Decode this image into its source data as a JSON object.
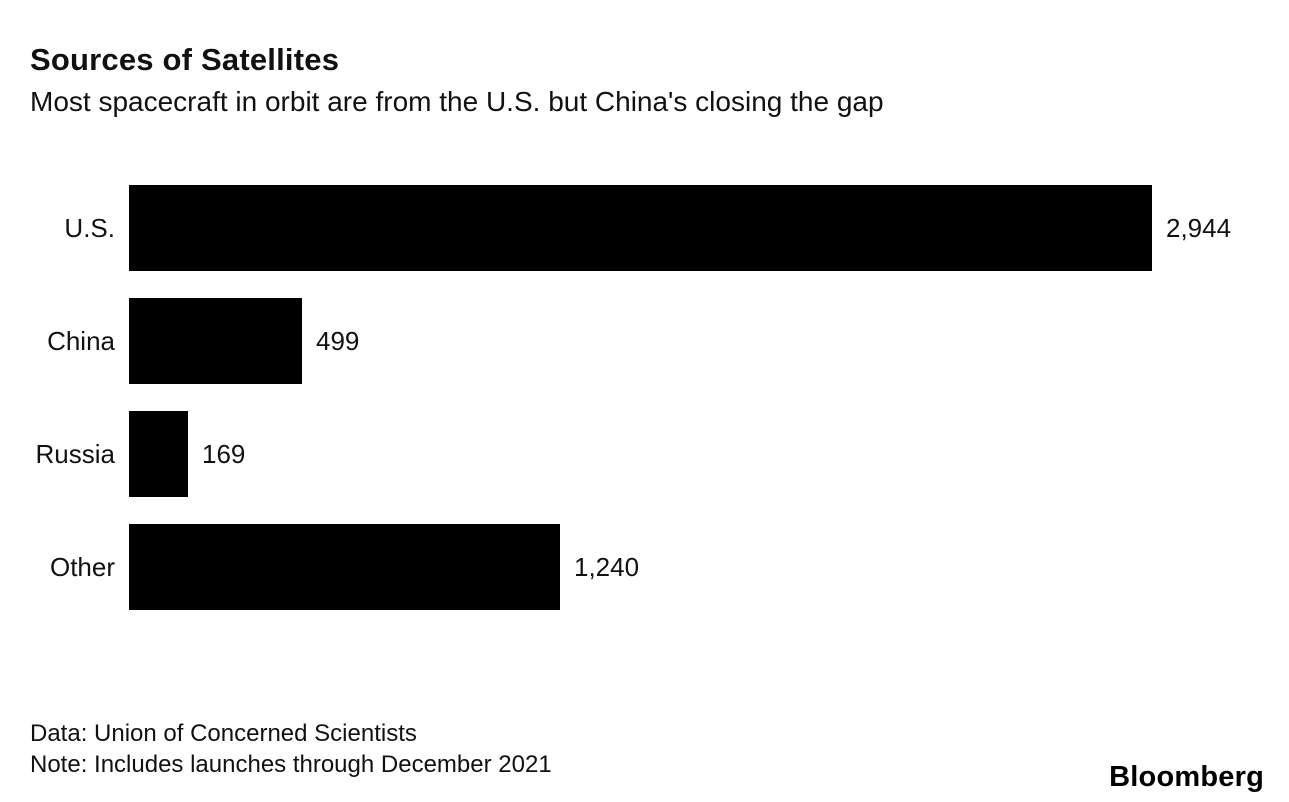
{
  "chart_data": {
    "type": "bar",
    "orientation": "horizontal",
    "title": "Sources of Satellites",
    "subtitle": "Most spacecraft in orbit are from the U.S. but China's closing the gap",
    "categories": [
      "U.S.",
      "China",
      "Russia",
      "Other"
    ],
    "values": [
      2944,
      499,
      169,
      1240
    ],
    "value_labels": [
      "2,944",
      "499",
      "169",
      "1,240"
    ],
    "bar_color": "#000000",
    "xlim": [
      0,
      2944
    ],
    "grid": false,
    "legend": false
  },
  "footer": {
    "source": "Data: Union of Concerned Scientists",
    "note": "Note: Includes launches through December 2021"
  },
  "branding": {
    "logo": "Bloomberg"
  }
}
